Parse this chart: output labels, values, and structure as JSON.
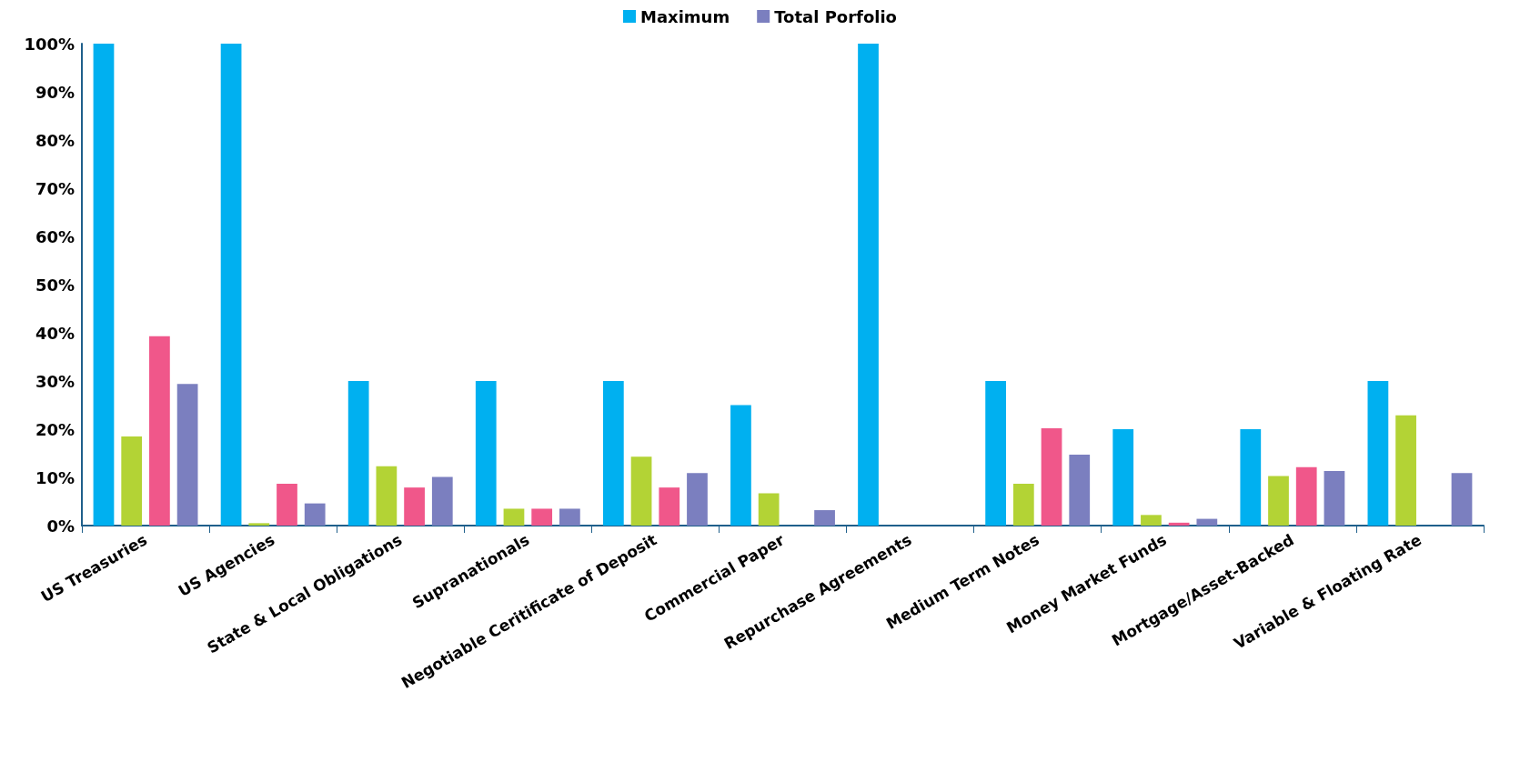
{
  "chart_data": {
    "type": "bar",
    "categories": [
      "US Treasuries",
      "US Agencies",
      "State & Local Obligations",
      "Supranationals",
      "Negotiable Ceritificate of Deposit",
      "Commercial Paper",
      "Repurchase Agreements",
      "Medium Term Notes",
      "Money Market Funds",
      "Mortgage/Asset-Backed",
      "Variable & Floating Rate"
    ],
    "series": [
      {
        "name": "Maximum",
        "color": "#00b0f0",
        "values": [
          100,
          100,
          30,
          30,
          30,
          25,
          100,
          30,
          20,
          20,
          30
        ]
      },
      {
        "color": "#b3d335",
        "values": [
          18.5,
          0.5,
          12.3,
          3.5,
          14.3,
          6.7,
          0,
          8.7,
          2.2,
          10.3,
          22.9
        ]
      },
      {
        "color": "#f0578a",
        "values": [
          39.3,
          8.7,
          7.9,
          3.5,
          7.9,
          0,
          0,
          20.2,
          0.6,
          12.1,
          0
        ]
      },
      {
        "name": "Total Porfolio",
        "color": "#7b7fbf",
        "values": [
          29.4,
          4.6,
          10.1,
          3.5,
          10.9,
          3.2,
          0,
          14.7,
          1.4,
          11.3,
          10.9
        ]
      }
    ],
    "ylim": [
      0,
      100
    ],
    "yticks": [
      {
        "value": 0,
        "label": "0%"
      },
      {
        "value": 10,
        "label": "10%"
      },
      {
        "value": 20,
        "label": "20%"
      },
      {
        "value": 30,
        "label": "30%"
      },
      {
        "value": 40,
        "label": "40%"
      },
      {
        "value": 50,
        "label": "50%"
      },
      {
        "value": 60,
        "label": "60%"
      },
      {
        "value": 70,
        "label": "70%"
      },
      {
        "value": 80,
        "label": "80%"
      },
      {
        "value": 90,
        "label": "90%"
      },
      {
        "value": 100,
        "label": "100%"
      }
    ],
    "grid": false,
    "legend": "top"
  }
}
